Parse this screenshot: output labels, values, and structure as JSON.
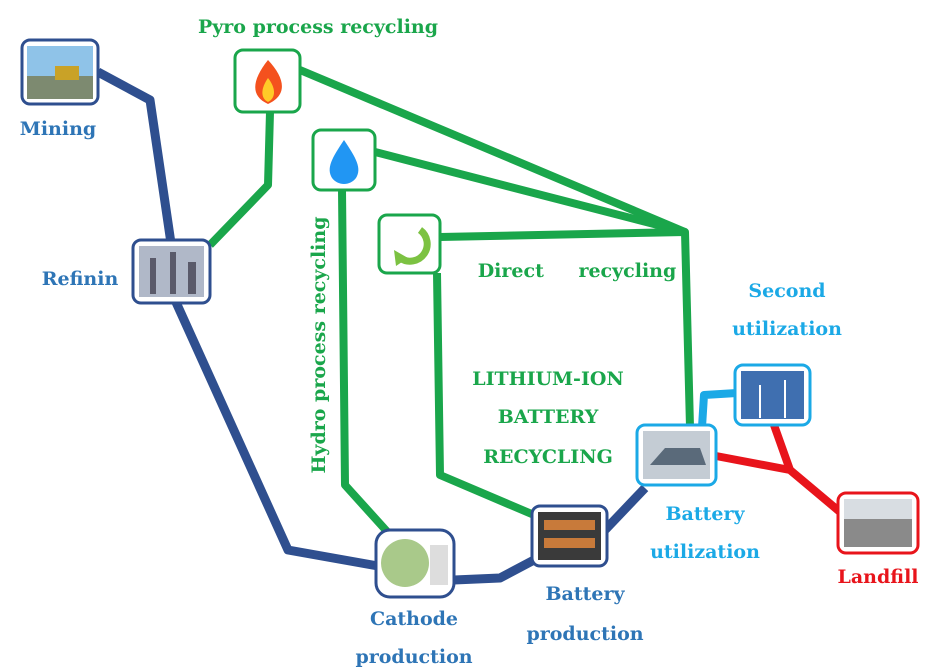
{
  "title": "Pyro process recycling",
  "hydro_label": "Hydro process recycling",
  "direct_label": "Direct recycling",
  "center_label": [
    "LITHIUM-ION",
    "BATTERY",
    "RECYCLING"
  ],
  "nodes": [
    {
      "label": [
        "Mining"
      ]
    },
    {
      "label": [
        "Refinin"
      ]
    },
    {
      "label": [
        "Cathode",
        "production"
      ]
    },
    {
      "label": [
        "Battery",
        "production"
      ]
    },
    {
      "label": [
        "Battery",
        "utilization"
      ]
    },
    {
      "label": [
        "Second",
        "utilization"
      ]
    },
    {
      "label": [
        "Landfill"
      ]
    }
  ]
}
